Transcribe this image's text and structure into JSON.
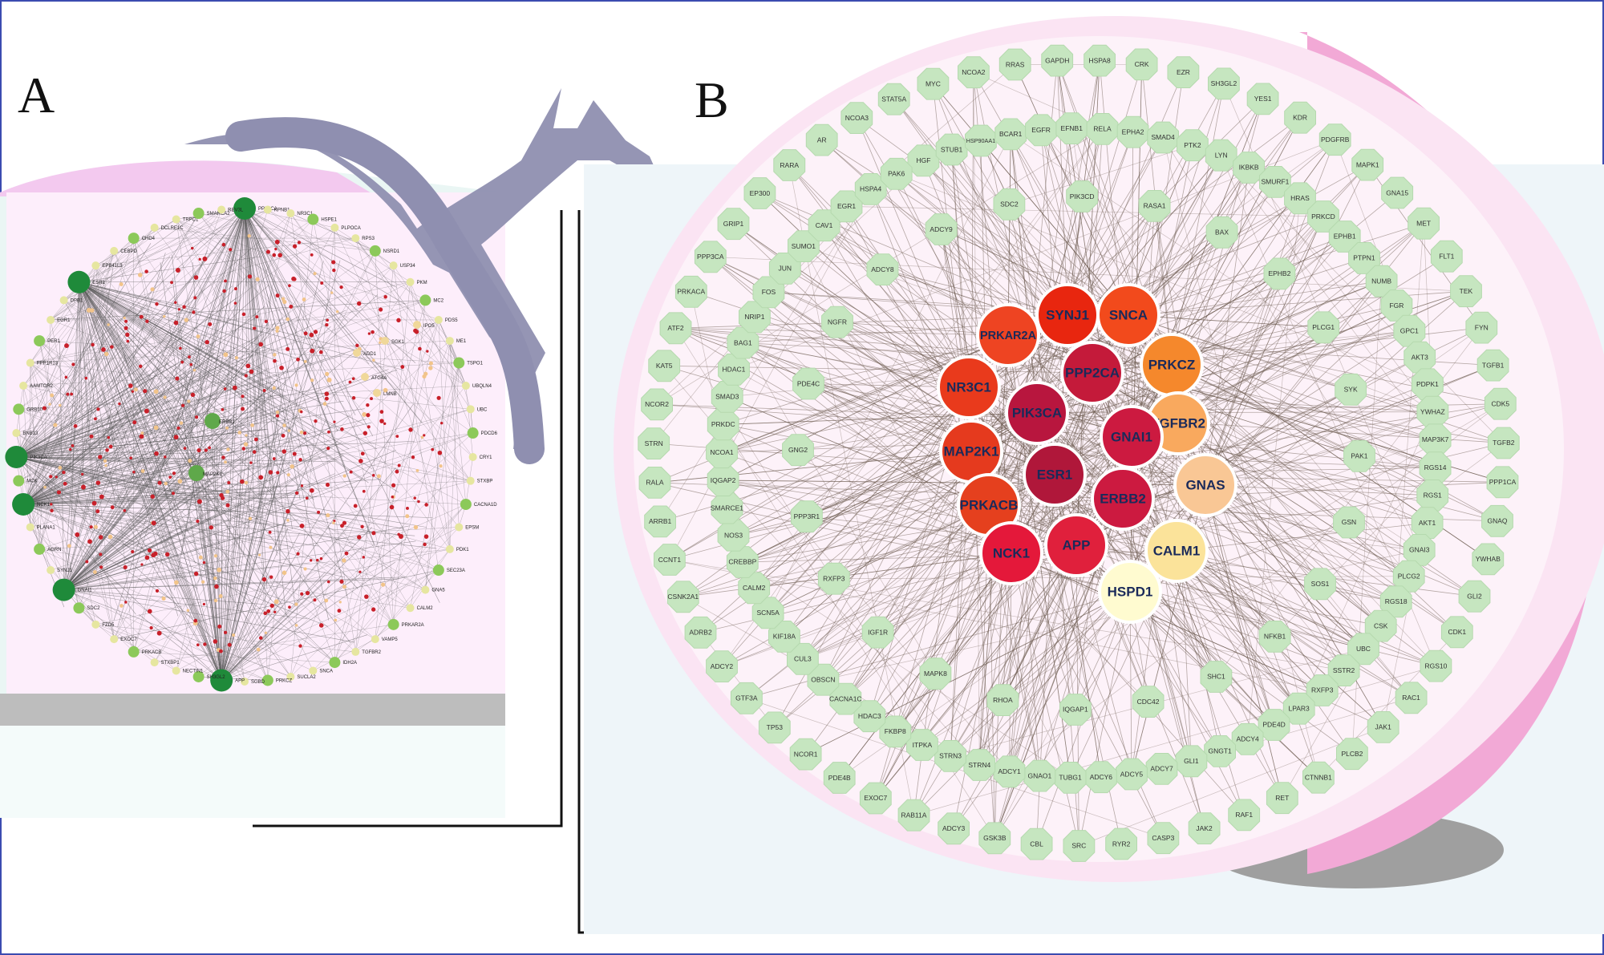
{
  "panel_a": {
    "label": "A",
    "outer_nodes": [
      "PPP2CA",
      "KPNB1",
      "NR3C1",
      "HSPE1",
      "PLPOCA",
      "RPS3",
      "NSRD1",
      "USP34",
      "PKM",
      "MC2",
      "PDS5",
      "ME1",
      "TSPO1",
      "UBQLN4",
      "UBC",
      "PDCD6",
      "CRY1",
      "STXBP",
      "CACNA1D",
      "EPSM",
      "PDK1",
      "SEC23A",
      "GNA5",
      "CALM2",
      "PRKAR2A",
      "VAMP5",
      "TGFBR2",
      "IDH2A",
      "SNCA",
      "SUCLA2",
      "PRKCZ",
      "SGBD",
      "APP",
      "SH3GL2",
      "NECTIN1",
      "STXBP1",
      "PRKACB",
      "EXOC7",
      "FZD5",
      "SDC2",
      "GNAI1",
      "SYNJ1",
      "AGRN",
      "PLANA1",
      "NCK1",
      "MCK",
      "PIK3CA",
      "BNB13",
      "GRB10",
      "AAMTOR2",
      "PPP1R13",
      "PER1",
      "EGR1",
      "DPB1",
      "ESR1",
      "EPB41L3",
      "CEBPD",
      "CHD4",
      "DCLRE1C",
      "TRPC1",
      "SMARCA2",
      "REV3L"
    ],
    "inner_nodes": [
      "ERBB2",
      "MAP2K1",
      "ATG4A",
      "LMNB",
      "SGK1",
      "ADD1",
      "IPO5"
    ]
  },
  "panel_b": {
    "label": "B",
    "hubs": [
      {
        "label": "SYNJ1",
        "color": "#e8260f"
      },
      {
        "label": "SNCA",
        "color": "#f24a1c"
      },
      {
        "label": "PRKAR2A",
        "color": "#ee4422"
      },
      {
        "label": "PRKCZ",
        "color": "#f5882c"
      },
      {
        "label": "NR3C1",
        "color": "#e93a1c"
      },
      {
        "label": "PPP2CA",
        "color": "#c41a3a"
      },
      {
        "label": "PIK3CA",
        "color": "#b8163e"
      },
      {
        "label": "TGFBR2",
        "color": "#f9a95e"
      },
      {
        "label": "GNAI1",
        "color": "#cc1a40"
      },
      {
        "label": "MAP2K1",
        "color": "#e53a1e"
      },
      {
        "label": "ESR1",
        "color": "#b0173a"
      },
      {
        "label": "GNAS",
        "color": "#f9c795"
      },
      {
        "label": "ERBB2",
        "color": "#cc1a40"
      },
      {
        "label": "PRKACB",
        "color": "#e5401e"
      },
      {
        "label": "APP",
        "color": "#e0203c"
      },
      {
        "label": "CALM1",
        "color": "#fbe39a"
      },
      {
        "label": "NCK1",
        "color": "#e4183a"
      },
      {
        "label": "HSPD1",
        "color": "#fffbd0"
      }
    ],
    "ring_outer": [
      "NCOA2",
      "RRAS",
      "GAPDH",
      "HSPA8",
      "CRK",
      "EZR",
      "SH3GL2",
      "YES1",
      "KDR",
      "PDGFRB",
      "MAPK1",
      "GNA15",
      "MET",
      "FLT1",
      "TEK",
      "FYN",
      "TGFB1",
      "CDK5",
      "TGFB2",
      "PPP1CA",
      "GNAQ",
      "YWHAB",
      "GLI2",
      "CDK1",
      "RGS10",
      "RAC1",
      "JAK1",
      "PLCB2",
      "CTNNB1",
      "RET",
      "RAF1",
      "JAK2",
      "CASP3",
      "RYR2",
      "SRC",
      "CBL",
      "GSK3B",
      "ADCY3",
      "RAB11A",
      "EXOC7",
      "PDE4B",
      "NCOR1",
      "TP53",
      "GTF3A",
      "ADCY2",
      "ADRB2",
      "CSNK2A1",
      "CCNT1",
      "ARRB1",
      "RALA",
      "STRN",
      "NCOR2",
      "KAT5",
      "ATF2",
      "PRKACA",
      "PPP3CA",
      "GRIP1",
      "EP300",
      "RARA",
      "AR",
      "NCOA3",
      "STAT5A",
      "MYC"
    ],
    "ring_middle": [
      "HGF",
      "STUB1",
      "HSP90AA1",
      "BCAR1",
      "EGFR",
      "EFNB1",
      "RELA",
      "EPHA2",
      "SMAD4",
      "PTK2",
      "LYN",
      "IKBKB",
      "SMURF1",
      "HRAS",
      "PRKCD",
      "EPHB1",
      "PTPN1",
      "NUMB",
      "FGR",
      "GPC1",
      "AKT3",
      "PDPK1",
      "YWHAZ",
      "MAP3K7",
      "RGS14",
      "RGS1",
      "AKT1",
      "GNAI3",
      "PLCG2",
      "RGS18",
      "CSK",
      "UBC",
      "SSTR2",
      "RXFP3",
      "LPAR3",
      "PDE4D",
      "ADCY4",
      "GNGT1",
      "GLI1",
      "ADCY7",
      "ADCY5",
      "ADCY6",
      "TUBG1",
      "GNAO1",
      "ADCY1",
      "STRN4",
      "STRN3",
      "ITPKA",
      "FKBP8",
      "HDAC3",
      "CACNA1C",
      "OBSCN",
      "CUL3",
      "KIF18A",
      "SCN5A",
      "CALM2",
      "CREBBP",
      "NOS3",
      "SMARCE1",
      "IQGAP2",
      "NCOA1",
      "PRKDC",
      "SMAD3",
      "HDAC1",
      "BAG1",
      "NRIP1",
      "FOS",
      "JUN",
      "SUMO1",
      "CAV1",
      "EGR1",
      "HSPA4",
      "PAK6"
    ],
    "ring_inner": [
      "SDC2",
      "PIK3CD",
      "RASA1",
      "BAX",
      "EPHB2",
      "PLCG1",
      "SYK",
      "PAK1",
      "GSN",
      "SOS1",
      "NFKB1",
      "SHC1",
      "CDC42",
      "IQGAP1",
      "RHOA",
      "MAPK8",
      "IGF1R",
      "RXFP3",
      "PPP3R1",
      "GNG2",
      "PDE4C",
      "NGFR",
      "ADCY8",
      "ADCY9"
    ]
  }
}
